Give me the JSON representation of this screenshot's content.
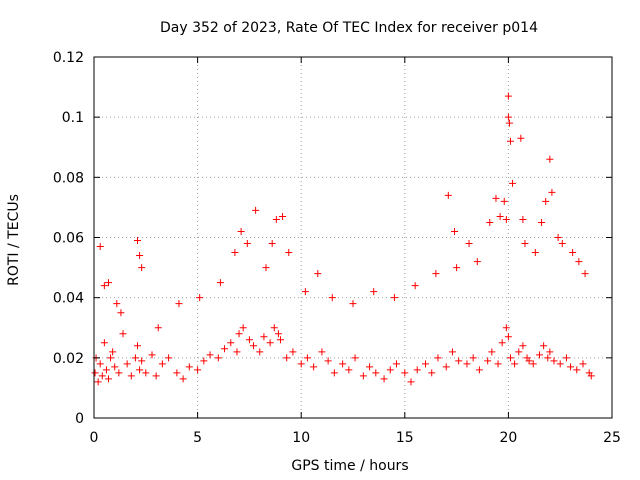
{
  "chart_data": {
    "type": "scatter",
    "title": "Day 352 of 2023, Rate Of TEC Index for receiver p014",
    "xlabel": "GPS time / hours",
    "ylabel": "ROTI / TECUs",
    "xlim": [
      0,
      25
    ],
    "ylim": [
      0,
      0.12
    ],
    "x_ticks": [
      0,
      5,
      10,
      15,
      20,
      25
    ],
    "x_tick_labels": [
      "0",
      "5",
      "10",
      "15",
      "20",
      "25"
    ],
    "y_ticks": [
      0,
      0.02,
      0.04,
      0.06,
      0.08,
      0.1,
      0.12
    ],
    "y_tick_labels": [
      "0",
      "0.02",
      "0.04",
      "0.06",
      "0.08",
      "0.1",
      "0.12"
    ],
    "grid": true,
    "marker": "+",
    "series": [
      {
        "name": "ROTI",
        "color": "#ff0000",
        "x": [
          0.05,
          0.1,
          0.2,
          0.3,
          0.4,
          0.5,
          0.6,
          0.7,
          0.8,
          0.9,
          1.0,
          1.2,
          1.4,
          1.6,
          1.8,
          2.0,
          2.1,
          2.2,
          2.3,
          2.5,
          2.8,
          3.0,
          3.3,
          3.6,
          4.0,
          4.3,
          4.6,
          5.0,
          5.3,
          5.6,
          6.0,
          6.3,
          6.6,
          6.9,
          7.0,
          7.2,
          7.5,
          7.7,
          8.0,
          8.2,
          8.5,
          8.7,
          8.9,
          9.0,
          9.3,
          9.6,
          10.0,
          10.3,
          10.6,
          11.0,
          11.3,
          11.6,
          12.0,
          12.3,
          12.6,
          13.0,
          13.3,
          13.6,
          14.0,
          14.3,
          14.6,
          15.0,
          15.3,
          15.6,
          16.0,
          16.3,
          16.6,
          17.0,
          17.3,
          17.6,
          18.0,
          18.3,
          18.6,
          19.0,
          19.2,
          19.5,
          19.7,
          19.9,
          20.0,
          20.1,
          20.3,
          20.5,
          20.7,
          20.9,
          21.0,
          21.2,
          21.5,
          21.7,
          21.9,
          22.0,
          22.2,
          22.5,
          22.8,
          23.0,
          23.3,
          23.6,
          23.9,
          24.0,
          0.3,
          0.5,
          0.7,
          1.1,
          1.3,
          2.1,
          2.2,
          2.3,
          3.1,
          4.1,
          5.1,
          6.1,
          6.8,
          7.1,
          7.4,
          7.8,
          8.3,
          8.6,
          8.8,
          9.1,
          9.4,
          10.2,
          10.8,
          11.5,
          12.5,
          13.5,
          14.5,
          15.5,
          16.5,
          17.1,
          17.4,
          17.5,
          18.1,
          18.5,
          19.1,
          19.4,
          19.6,
          19.8,
          19.9,
          20.0,
          20.0,
          20.05,
          20.1,
          20.2,
          20.6,
          20.7,
          20.8,
          21.3,
          21.6,
          21.8,
          22.0,
          22.1,
          22.4,
          22.6,
          23.1,
          23.4,
          23.7
        ],
        "y": [
          0.015,
          0.02,
          0.012,
          0.018,
          0.014,
          0.025,
          0.016,
          0.013,
          0.02,
          0.022,
          0.017,
          0.015,
          0.028,
          0.018,
          0.014,
          0.02,
          0.024,
          0.016,
          0.019,
          0.015,
          0.021,
          0.014,
          0.018,
          0.02,
          0.015,
          0.013,
          0.017,
          0.016,
          0.019,
          0.021,
          0.02,
          0.023,
          0.025,
          0.022,
          0.028,
          0.03,
          0.026,
          0.024,
          0.022,
          0.027,
          0.025,
          0.03,
          0.028,
          0.026,
          0.02,
          0.022,
          0.018,
          0.02,
          0.017,
          0.022,
          0.019,
          0.015,
          0.018,
          0.016,
          0.02,
          0.014,
          0.017,
          0.015,
          0.013,
          0.016,
          0.018,
          0.015,
          0.012,
          0.016,
          0.018,
          0.015,
          0.02,
          0.017,
          0.022,
          0.019,
          0.018,
          0.02,
          0.016,
          0.019,
          0.022,
          0.018,
          0.025,
          0.03,
          0.027,
          0.02,
          0.018,
          0.022,
          0.024,
          0.02,
          0.019,
          0.018,
          0.021,
          0.024,
          0.02,
          0.022,
          0.019,
          0.018,
          0.02,
          0.017,
          0.016,
          0.018,
          0.015,
          0.014,
          0.057,
          0.044,
          0.045,
          0.038,
          0.035,
          0.059,
          0.054,
          0.05,
          0.03,
          0.038,
          0.04,
          0.045,
          0.055,
          0.062,
          0.058,
          0.069,
          0.05,
          0.058,
          0.066,
          0.067,
          0.055,
          0.042,
          0.048,
          0.04,
          0.038,
          0.042,
          0.04,
          0.044,
          0.048,
          0.074,
          0.062,
          0.05,
          0.058,
          0.052,
          0.065,
          0.073,
          0.067,
          0.072,
          0.066,
          0.107,
          0.1,
          0.098,
          0.092,
          0.078,
          0.093,
          0.066,
          0.058,
          0.055,
          0.065,
          0.072,
          0.086,
          0.075,
          0.06,
          0.058,
          0.055,
          0.052,
          0.048
        ]
      }
    ]
  }
}
